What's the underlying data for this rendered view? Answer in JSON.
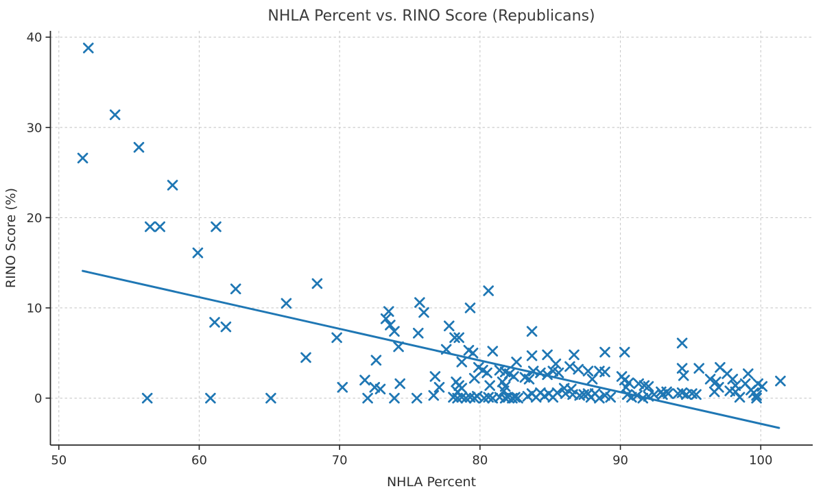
{
  "chart_data": {
    "type": "scatter",
    "title": "NHLA Percent vs. RINO Score (Republicans)",
    "xlabel": "NHLA Percent",
    "ylabel": "RINO Score (%)",
    "xticks": [
      50,
      60,
      70,
      80,
      90,
      100
    ],
    "yticks": [
      0,
      10,
      20,
      30,
      40
    ],
    "xlim": [
      49.4,
      103.7
    ],
    "ylim": [
      -5.2,
      40.7
    ],
    "grid": true,
    "legend_position": "none",
    "marker": "x",
    "colors": {
      "marker": "#1f77b4",
      "trend": "#1f77b4",
      "grid": "#c9c9c9",
      "axis": "#262626",
      "text": "#2e2e2e"
    },
    "trend_line": {
      "x_start": 51.7,
      "y_start": 14.1,
      "x_end": 101.3,
      "y_end": -3.3
    },
    "points": [
      [
        52.1,
        38.8
      ],
      [
        54.0,
        31.4
      ],
      [
        55.7,
        27.8
      ],
      [
        51.7,
        26.6
      ],
      [
        58.1,
        23.6
      ],
      [
        56.5,
        19.0
      ],
      [
        57.2,
        19.0
      ],
      [
        61.2,
        19.0
      ],
      [
        59.9,
        16.1
      ],
      [
        62.6,
        12.1
      ],
      [
        61.1,
        8.4
      ],
      [
        61.9,
        7.9
      ],
      [
        66.2,
        10.5
      ],
      [
        68.4,
        12.7
      ],
      [
        67.6,
        4.5
      ],
      [
        69.8,
        6.7
      ],
      [
        70.2,
        1.2
      ],
      [
        56.3,
        0.0
      ],
      [
        60.8,
        0.0
      ],
      [
        65.1,
        0.0
      ],
      [
        71.8,
        2.0
      ],
      [
        72.0,
        0.0
      ],
      [
        72.5,
        1.2
      ],
      [
        72.9,
        1.0
      ],
      [
        72.6,
        4.2
      ],
      [
        73.5,
        9.6
      ],
      [
        73.3,
        8.8
      ],
      [
        73.6,
        8.1
      ],
      [
        73.9,
        7.4
      ],
      [
        74.2,
        5.7
      ],
      [
        74.3,
        1.6
      ],
      [
        73.9,
        0.0
      ],
      [
        75.5,
        0.0
      ],
      [
        75.7,
        10.6
      ],
      [
        76.0,
        9.5
      ],
      [
        75.6,
        7.2
      ],
      [
        76.8,
        2.4
      ],
      [
        77.1,
        1.2
      ],
      [
        76.7,
        0.3
      ],
      [
        77.6,
        5.4
      ],
      [
        77.8,
        8.0
      ],
      [
        78.2,
        6.7
      ],
      [
        78.5,
        6.7
      ],
      [
        79.3,
        10.0
      ],
      [
        78.7,
        4.0
      ],
      [
        79.2,
        5.3
      ],
      [
        79.5,
        5.0
      ],
      [
        78.3,
        1.8
      ],
      [
        78.5,
        1.4
      ],
      [
        78.7,
        1.1
      ],
      [
        78.4,
        0.7
      ],
      [
        78.1,
        0.1
      ],
      [
        78.4,
        0.0
      ],
      [
        78.7,
        0.1
      ],
      [
        79.0,
        0.0
      ],
      [
        79.3,
        0.1
      ],
      [
        79.6,
        0.0
      ],
      [
        79.8,
        0.2
      ],
      [
        79.9,
        3.4
      ],
      [
        79.6,
        2.2
      ],
      [
        80.2,
        3.1
      ],
      [
        80.5,
        2.8
      ],
      [
        80.3,
        0.0
      ],
      [
        80.6,
        0.1
      ],
      [
        80.9,
        0.0
      ],
      [
        80.7,
        1.4
      ],
      [
        80.6,
        11.9
      ],
      [
        80.9,
        5.2
      ],
      [
        81.4,
        3.1
      ],
      [
        81.8,
        2.9
      ],
      [
        82.1,
        2.7
      ],
      [
        82.4,
        2.4
      ],
      [
        81.6,
        1.8
      ],
      [
        81.8,
        1.3
      ],
      [
        81.7,
        0.8
      ],
      [
        81.4,
        0.1
      ],
      [
        81.8,
        0.0
      ],
      [
        82.0,
        0.1
      ],
      [
        82.3,
        0.0
      ],
      [
        82.5,
        0.1
      ],
      [
        82.7,
        0.0
      ],
      [
        82.6,
        4.0
      ],
      [
        83.2,
        2.3
      ],
      [
        83.5,
        2.1
      ],
      [
        83.7,
        7.4
      ],
      [
        83.7,
        4.7
      ],
      [
        83.8,
        3.0
      ],
      [
        84.3,
        2.8
      ],
      [
        84.8,
        2.6
      ],
      [
        85.2,
        3.0
      ],
      [
        85.6,
        2.8
      ],
      [
        84.8,
        4.8
      ],
      [
        85.4,
        3.8
      ],
      [
        83.4,
        0.2
      ],
      [
        83.7,
        0.5
      ],
      [
        84.0,
        0.1
      ],
      [
        84.3,
        0.6
      ],
      [
        84.6,
        0.2
      ],
      [
        84.9,
        0.5
      ],
      [
        85.2,
        0.1
      ],
      [
        85.5,
        0.6
      ],
      [
        86.0,
        1.1
      ],
      [
        86.5,
        1.0
      ],
      [
        86.7,
        4.8
      ],
      [
        86.4,
        3.5
      ],
      [
        87.0,
        3.2
      ],
      [
        86.1,
        0.5
      ],
      [
        86.6,
        0.4
      ],
      [
        87.1,
        0.3
      ],
      [
        87.4,
        0.4
      ],
      [
        87.7,
        0.5
      ],
      [
        87.9,
        0.1
      ],
      [
        88.2,
        0.5
      ],
      [
        88.5,
        0.0
      ],
      [
        88.9,
        0.3
      ],
      [
        89.3,
        0.1
      ],
      [
        87.7,
        3.0
      ],
      [
        88.0,
        2.1
      ],
      [
        88.5,
        3.0
      ],
      [
        88.9,
        2.9
      ],
      [
        88.9,
        5.1
      ],
      [
        90.3,
        5.1
      ],
      [
        90.1,
        2.4
      ],
      [
        90.3,
        2.0
      ],
      [
        90.6,
        1.7
      ],
      [
        90.4,
        1.2
      ],
      [
        91.3,
        1.6
      ],
      [
        91.7,
        1.4
      ],
      [
        92.0,
        1.3
      ],
      [
        90.5,
        0.4
      ],
      [
        90.8,
        0.1
      ],
      [
        91.2,
        0.3
      ],
      [
        91.6,
        0.0
      ],
      [
        92.0,
        0.2
      ],
      [
        92.4,
        0.4
      ],
      [
        92.9,
        0.7
      ],
      [
        93.3,
        0.7
      ],
      [
        93.0,
        0.4
      ],
      [
        93.4,
        0.5
      ],
      [
        94.1,
        0.5
      ],
      [
        94.4,
        0.6
      ],
      [
        94.7,
        0.4
      ],
      [
        95.1,
        0.5
      ],
      [
        95.4,
        0.4
      ],
      [
        94.4,
        6.1
      ],
      [
        94.4,
        3.3
      ],
      [
        94.5,
        2.5
      ],
      [
        95.6,
        3.3
      ],
      [
        96.4,
        2.1
      ],
      [
        96.8,
        1.8
      ],
      [
        97.0,
        1.2
      ],
      [
        96.7,
        0.7
      ],
      [
        97.1,
        3.4
      ],
      [
        97.6,
        2.7
      ],
      [
        97.8,
        0.8
      ],
      [
        98.0,
        2.1
      ],
      [
        98.2,
        1.4
      ],
      [
        98.2,
        0.7
      ],
      [
        98.5,
        0.1
      ],
      [
        98.9,
        1.6
      ],
      [
        99.1,
        2.7
      ],
      [
        99.3,
        0.9
      ],
      [
        99.5,
        0.6
      ],
      [
        99.7,
        0.3
      ],
      [
        99.7,
        0.0
      ],
      [
        99.8,
        1.6
      ],
      [
        100.1,
        1.3
      ],
      [
        101.4,
        1.9
      ]
    ]
  }
}
